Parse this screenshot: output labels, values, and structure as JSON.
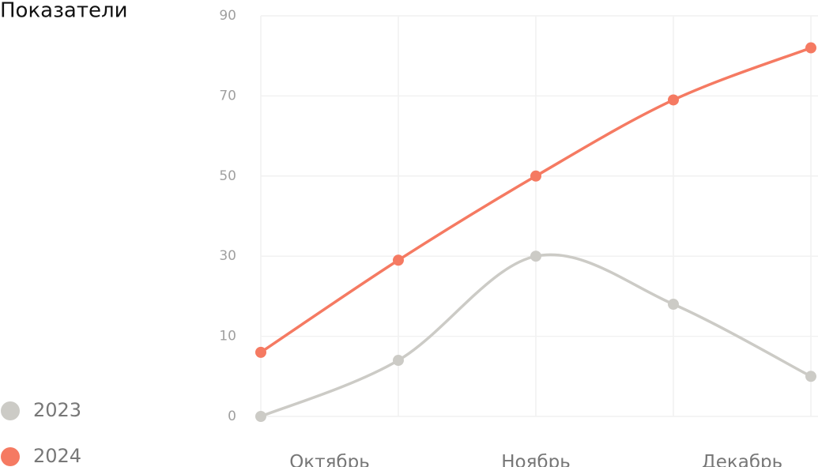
{
  "chart_data": {
    "type": "line",
    "title": "Показатели",
    "categories": [
      null,
      null,
      null,
      null,
      null
    ],
    "x_labels": [
      "Октябрь",
      "Ноябрь",
      "Декабрь"
    ],
    "series": [
      {
        "name": "2023",
        "color": "#cccbc6",
        "values": [
          0,
          7,
          30,
          18,
          5
        ]
      },
      {
        "name": "2024",
        "color": "#f57a62",
        "values": [
          8,
          29,
          50,
          69,
          82
        ]
      }
    ],
    "ylim": [
      0,
      90
    ],
    "yticks": [
      0,
      10,
      30,
      50,
      70,
      90
    ],
    "grid": true
  }
}
